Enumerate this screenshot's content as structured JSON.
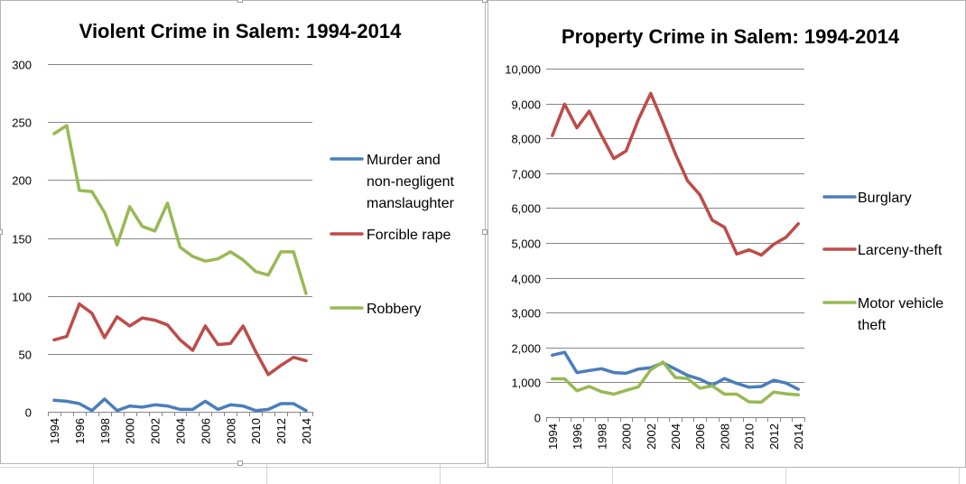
{
  "chart_data": [
    {
      "type": "line",
      "title": "Violent Crime in Salem: 1994-2014",
      "xlabel": "",
      "ylabel": "",
      "categories": [
        "1994",
        "1995",
        "1996",
        "1997",
        "1998",
        "1999",
        "2000",
        "2001",
        "2002",
        "2003",
        "2004",
        "2005",
        "2006",
        "2007",
        "2008",
        "2009",
        "2010",
        "2011",
        "2012",
        "2013",
        "2014"
      ],
      "x_tick_labels": [
        "1994",
        "1996",
        "1998",
        "2000",
        "2002",
        "2004",
        "2006",
        "2008",
        "2010",
        "2012",
        "2014"
      ],
      "ylim": [
        0,
        300
      ],
      "y_ticks": [
        0,
        50,
        100,
        150,
        200,
        250,
        300
      ],
      "y_tick_labels": [
        "0",
        "50",
        "100",
        "150",
        "200",
        "250",
        "300"
      ],
      "grid": "horizontal",
      "legend_position": "right",
      "series": [
        {
          "name": "Murder and non-negligent manslaughter",
          "legend_lines": [
            "Murder and",
            "non-negligent",
            "manslaughter"
          ],
          "color": "#4a7ebb",
          "values": [
            10,
            9,
            7,
            1,
            11,
            1,
            5,
            4,
            6,
            5,
            2,
            2,
            9,
            2,
            6,
            5,
            1,
            2,
            7,
            7,
            1
          ]
        },
        {
          "name": "Forcible rape",
          "legend_lines": [
            "Forcible rape"
          ],
          "color": "#be4b48",
          "values": [
            62,
            65,
            93,
            85,
            64,
            82,
            74,
            81,
            79,
            75,
            62,
            53,
            74,
            58,
            59,
            74,
            52,
            32,
            40,
            47,
            44
          ]
        },
        {
          "name": "Robbery",
          "legend_lines": [
            "Robbery"
          ],
          "color": "#98b954",
          "values": [
            240,
            247,
            191,
            190,
            172,
            144,
            177,
            160,
            156,
            180,
            142,
            134,
            130,
            132,
            138,
            131,
            121,
            118,
            138,
            138,
            102
          ]
        }
      ]
    },
    {
      "type": "line",
      "title": "Property Crime in Salem: 1994-2014",
      "xlabel": "",
      "ylabel": "",
      "categories": [
        "1994",
        "1995",
        "1996",
        "1997",
        "1998",
        "1999",
        "2000",
        "2001",
        "2002",
        "2003",
        "2004",
        "2005",
        "2006",
        "2007",
        "2008",
        "2009",
        "2010",
        "2011",
        "2012",
        "2013",
        "2014"
      ],
      "x_tick_labels": [
        "1994",
        "1996",
        "1998",
        "2000",
        "2002",
        "2004",
        "2006",
        "2008",
        "2010",
        "2012",
        "2014"
      ],
      "ylim": [
        0,
        10000
      ],
      "y_ticks": [
        0,
        1000,
        2000,
        3000,
        4000,
        5000,
        6000,
        7000,
        8000,
        9000,
        10000
      ],
      "y_tick_labels": [
        "0",
        "1,000",
        "2,000",
        "3,000",
        "4,000",
        "5,000",
        "6,000",
        "7,000",
        "8,000",
        "9,000",
        "10,000"
      ],
      "grid": "horizontal",
      "legend_position": "right",
      "series": [
        {
          "name": "Burglary",
          "legend_lines": [
            "Burglary"
          ],
          "color": "#4a7ebb",
          "values": [
            1780,
            1860,
            1280,
            1340,
            1390,
            1280,
            1260,
            1380,
            1420,
            1560,
            1380,
            1200,
            1090,
            920,
            1110,
            970,
            860,
            880,
            1060,
            980,
            800
          ]
        },
        {
          "name": "Larceny-theft",
          "legend_lines": [
            "Larceny-theft"
          ],
          "color": "#be4b48",
          "values": [
            8080,
            8980,
            8300,
            8780,
            8080,
            7420,
            7640,
            8540,
            9290,
            8450,
            7560,
            6780,
            6380,
            5650,
            5450,
            4680,
            4800,
            4650,
            4960,
            5160,
            5550
          ]
        },
        {
          "name": "Motor vehicle theft",
          "legend_lines": [
            "Motor vehicle",
            "theft"
          ],
          "color": "#98b954",
          "values": [
            1100,
            1100,
            760,
            880,
            730,
            660,
            770,
            870,
            1360,
            1580,
            1140,
            1110,
            830,
            900,
            660,
            660,
            440,
            430,
            720,
            670,
            640
          ]
        }
      ]
    }
  ]
}
